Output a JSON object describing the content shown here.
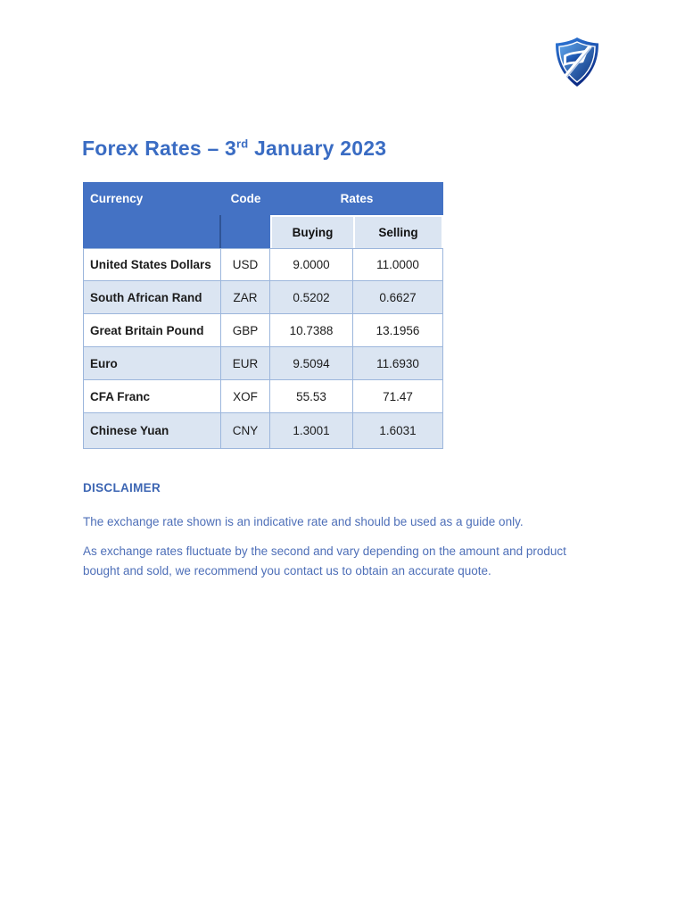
{
  "page": {
    "title_prefix": "Forex Rates – 3",
    "title_sup": "rd",
    "title_suffix": " January 2023"
  },
  "colors": {
    "header_bg": "#4472C4",
    "subheader_bg": "#DBE5F2",
    "row_alt_bg": "#DBE5F2",
    "table_border": "#9CB6DC",
    "title_text": "#3A6CC3",
    "body_text": "#4E6FB8"
  },
  "table": {
    "headers": {
      "currency": "Currency",
      "code": "Code",
      "rates": "Rates",
      "buying": "Buying",
      "selling": "Selling"
    },
    "rows": [
      {
        "currency": "United States Dollars",
        "code": "USD",
        "buying": "9.0000",
        "selling": "11.0000"
      },
      {
        "currency": "South African Rand",
        "code": "ZAR",
        "buying": "0.5202",
        "selling": "0.6627"
      },
      {
        "currency": "Great Britain Pound",
        "code": "GBP",
        "buying": "10.7388",
        "selling": "13.1956"
      },
      {
        "currency": "Euro",
        "code": "EUR",
        "buying": "9.5094",
        "selling": "11.6930"
      },
      {
        "currency": "CFA Franc",
        "code": "XOF",
        "buying": "55.53",
        "selling": "71.47"
      },
      {
        "currency": "Chinese Yuan",
        "code": "CNY",
        "buying": "1.3001",
        "selling": "1.6031"
      }
    ]
  },
  "disclaimer": {
    "heading": "DISCLAIMER",
    "line1": "The exchange rate shown is an indicative rate and should be used as a guide only.",
    "line2": "As exchange rates fluctuate by the second and vary depending on the amount and product",
    "line3": "bought and sold, we recommend you contact us to obtain an accurate quote."
  }
}
